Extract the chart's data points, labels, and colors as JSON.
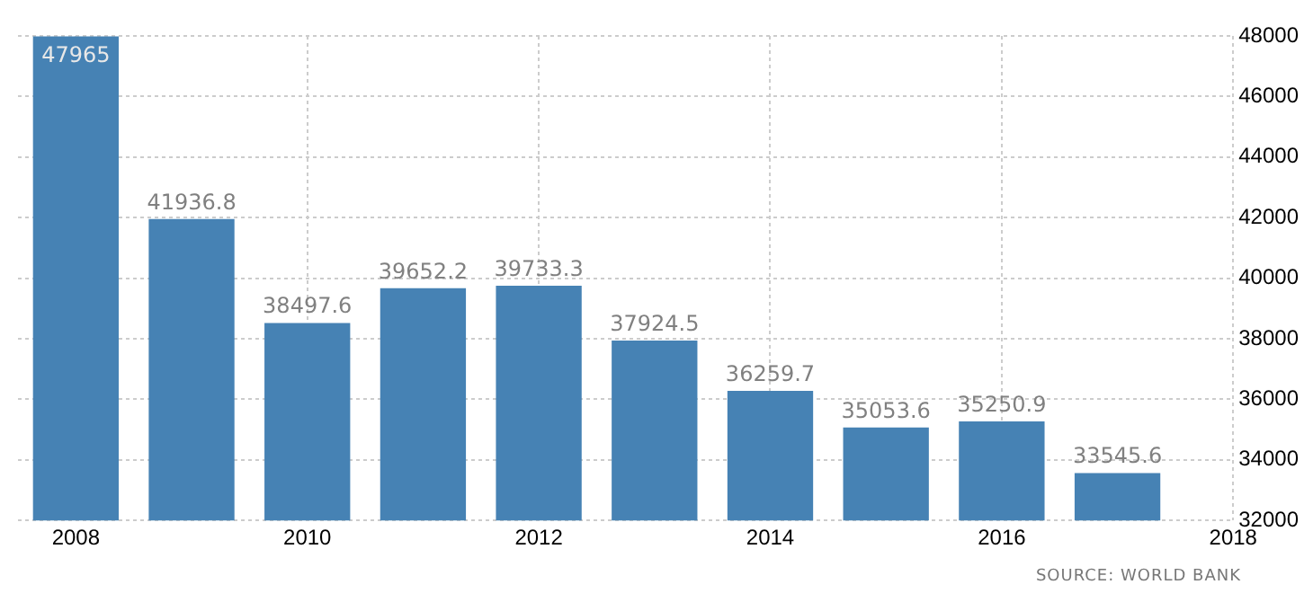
{
  "chart_data": {
    "type": "bar",
    "x": [
      2008,
      2009,
      2010,
      2011,
      2012,
      2013,
      2014,
      2015,
      2016,
      2017
    ],
    "values": [
      47965,
      41936.8,
      38497.6,
      39652.2,
      39733.3,
      37924.5,
      36259.7,
      35053.6,
      35250.9,
      33545.6
    ],
    "color": "#4682b4",
    "xlim": [
      2007.5,
      2018
    ],
    "xticks": [
      2008,
      2010,
      2012,
      2014,
      2016,
      2018
    ],
    "ylim": [
      32000,
      48000
    ],
    "yticks": [
      32000,
      34000,
      36000,
      38000,
      40000,
      42000,
      44000,
      46000,
      48000
    ],
    "grid": true,
    "legend": false,
    "data_labels": true,
    "annotations": [
      "SOURCE: WORLD BANK"
    ]
  }
}
